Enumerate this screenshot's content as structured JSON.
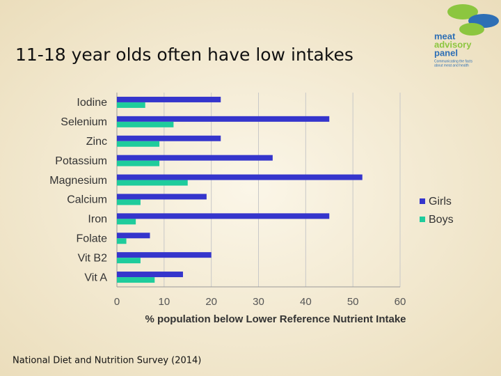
{
  "slide_title": "11-18 year olds often have low intakes",
  "logo": {
    "lines": [
      "meat",
      "advisory",
      "panel"
    ],
    "tagline": [
      "Communicating the facts",
      "about meat and health"
    ]
  },
  "source": "National Diet and Nutrition Survey (2014)",
  "chart_data": {
    "type": "hbar",
    "xlabel": "% population below Lower Reference Nutrient Intake",
    "categories": [
      "Iodine",
      "Selenium",
      "Zinc",
      "Potassium",
      "Magnesium",
      "Calcium",
      "Iron",
      "Folate",
      "Vit B2",
      "Vit A"
    ],
    "series": [
      {
        "name": "Girls",
        "color": "#3535cc",
        "values": [
          22,
          45,
          22,
          33,
          52,
          19,
          45,
          7,
          20,
          14
        ]
      },
      {
        "name": "Boys",
        "color": "#1fcc9c",
        "values": [
          6,
          12,
          9,
          9,
          15,
          5,
          4,
          2,
          5,
          8
        ]
      }
    ],
    "xlim": [
      0,
      60
    ],
    "xticks": [
      0,
      10,
      20,
      30,
      40,
      50,
      60
    ],
    "grid": true,
    "legend": "right"
  }
}
